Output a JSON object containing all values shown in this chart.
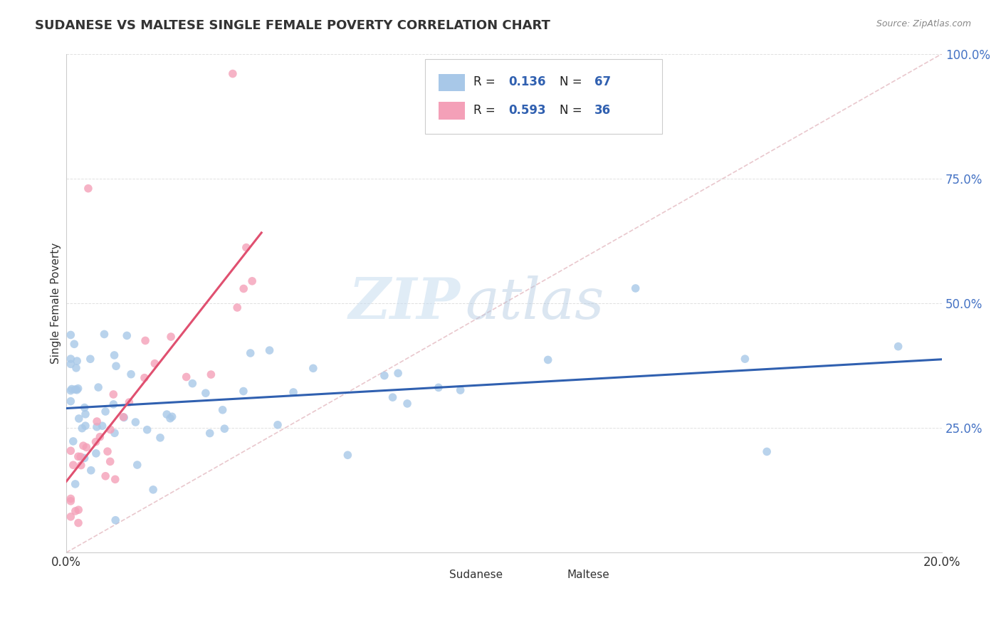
{
  "title": "SUDANESE VS MALTESE SINGLE FEMALE POVERTY CORRELATION CHART",
  "source": "Source: ZipAtlas.com",
  "ylabel": "Single Female Poverty",
  "xlim": [
    0.0,
    0.2
  ],
  "ylim": [
    0.0,
    1.0
  ],
  "xtick_positions": [
    0.0,
    0.2
  ],
  "xtick_labels": [
    "0.0%",
    "20.0%"
  ],
  "ytick_positions": [
    0.0,
    0.25,
    0.5,
    0.75,
    1.0
  ],
  "ytick_labels": [
    "",
    "25.0%",
    "50.0%",
    "75.0%",
    "100.0%"
  ],
  "sudanese_color": "#a8c8e8",
  "maltese_color": "#f4a0b8",
  "sudanese_R": 0.136,
  "sudanese_N": 67,
  "maltese_R": 0.593,
  "maltese_N": 36,
  "trend_blue": "#3060b0",
  "trend_pink": "#e05070",
  "ref_line_color": "#e0b0b8",
  "watermark_zip": "ZIP",
  "watermark_atlas": "atlas",
  "background_color": "#ffffff",
  "grid_color": "#dddddd",
  "ytick_color": "#4472c4",
  "title_color": "#333333",
  "source_color": "#888888"
}
